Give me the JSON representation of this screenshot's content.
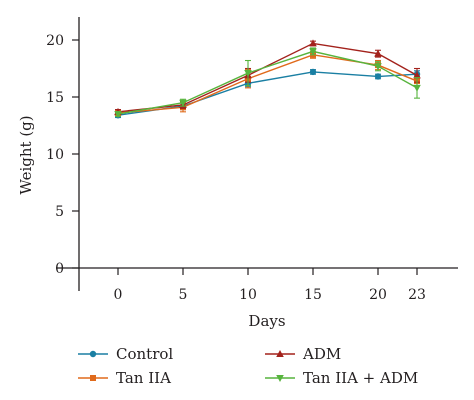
{
  "chart_data": {
    "type": "line",
    "xlabel": "Days",
    "ylabel": "Weight (g)",
    "x": [
      0,
      5,
      10,
      15,
      20,
      23
    ],
    "x_ticks": [
      "0",
      "5",
      "10",
      "15",
      "20",
      "23"
    ],
    "y_ticks": [
      "0",
      "5",
      "10",
      "15",
      "20"
    ],
    "ylim": [
      0,
      22
    ],
    "grid": false,
    "legend_position": "bottom",
    "series": [
      {
        "name": "Control",
        "color": "#1a7fa3",
        "marker": "circle",
        "values": [
          13.4,
          14.2,
          16.2,
          17.2,
          16.8,
          17.0
        ],
        "errors": [
          0.2,
          0.3,
          0.3,
          0.2,
          0.2,
          0.3
        ]
      },
      {
        "name": "Tan IIA",
        "color": "#e06a1b",
        "marker": "square",
        "values": [
          13.6,
          14.1,
          16.6,
          18.7,
          17.8,
          16.4
        ],
        "errors": [
          0.2,
          0.4,
          0.8,
          0.3,
          0.4,
          0.4
        ]
      },
      {
        "name": "ADM",
        "color": "#a3221c",
        "marker": "triangle-up",
        "values": [
          13.7,
          14.3,
          16.9,
          19.7,
          18.8,
          16.9
        ],
        "errors": [
          0.2,
          0.3,
          0.6,
          0.2,
          0.3,
          0.6
        ]
      },
      {
        "name": "Tan IIA + ADM",
        "color": "#57b43d",
        "marker": "triangle-down",
        "values": [
          13.5,
          14.5,
          17.1,
          19.0,
          17.7,
          15.8
        ],
        "errors": [
          0.2,
          0.3,
          1.1,
          0.3,
          0.4,
          0.9
        ]
      }
    ]
  }
}
